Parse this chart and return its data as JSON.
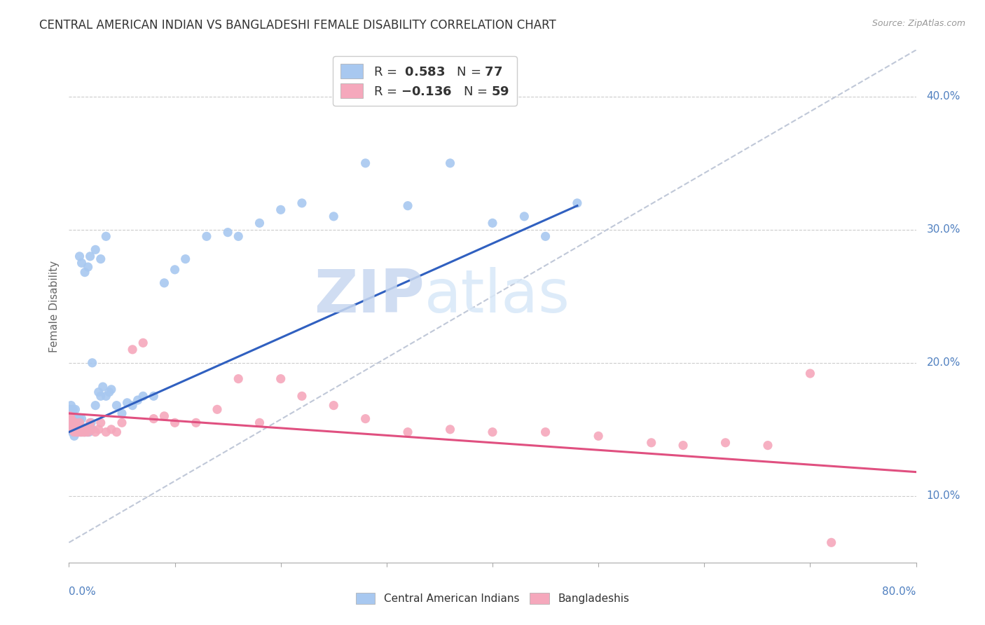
{
  "title": "CENTRAL AMERICAN INDIAN VS BANGLADESHI FEMALE DISABILITY CORRELATION CHART",
  "source": "Source: ZipAtlas.com",
  "ylabel": "Female Disability",
  "yticks_right": [
    0.1,
    0.2,
    0.3,
    0.4
  ],
  "ytick_labels_right": [
    "10.0%",
    "20.0%",
    "30.0%",
    "40.0%"
  ],
  "xlim": [
    0.0,
    0.8
  ],
  "ylim": [
    0.05,
    0.435
  ],
  "blue_color": "#A8C8F0",
  "pink_color": "#F5A8BC",
  "blue_line_color": "#3060C0",
  "pink_line_color": "#E05080",
  "gray_dash_color": "#C0C8D8",
  "watermark_zip": "ZIP",
  "watermark_atlas": "atlas",
  "blue_scatter_x": [
    0.001,
    0.001,
    0.002,
    0.002,
    0.002,
    0.003,
    0.003,
    0.003,
    0.004,
    0.004,
    0.004,
    0.005,
    0.005,
    0.005,
    0.006,
    0.006,
    0.006,
    0.007,
    0.007,
    0.008,
    0.008,
    0.009,
    0.009,
    0.01,
    0.01,
    0.011,
    0.012,
    0.012,
    0.013,
    0.014,
    0.015,
    0.016,
    0.017,
    0.018,
    0.019,
    0.02,
    0.021,
    0.022,
    0.025,
    0.028,
    0.03,
    0.032,
    0.035,
    0.038,
    0.04,
    0.045,
    0.05,
    0.055,
    0.06,
    0.065,
    0.07,
    0.08,
    0.09,
    0.1,
    0.11,
    0.13,
    0.15,
    0.16,
    0.18,
    0.2,
    0.22,
    0.25,
    0.28,
    0.32,
    0.36,
    0.4,
    0.43,
    0.45,
    0.48,
    0.01,
    0.012,
    0.015,
    0.018,
    0.02,
    0.025,
    0.03,
    0.035
  ],
  "blue_scatter_y": [
    0.155,
    0.165,
    0.15,
    0.158,
    0.168,
    0.148,
    0.155,
    0.162,
    0.15,
    0.158,
    0.165,
    0.145,
    0.152,
    0.16,
    0.15,
    0.158,
    0.165,
    0.148,
    0.155,
    0.15,
    0.158,
    0.148,
    0.155,
    0.15,
    0.158,
    0.148,
    0.152,
    0.158,
    0.148,
    0.15,
    0.148,
    0.15,
    0.148,
    0.15,
    0.148,
    0.152,
    0.155,
    0.2,
    0.168,
    0.178,
    0.175,
    0.182,
    0.175,
    0.178,
    0.18,
    0.168,
    0.162,
    0.17,
    0.168,
    0.172,
    0.175,
    0.175,
    0.26,
    0.27,
    0.278,
    0.295,
    0.298,
    0.295,
    0.305,
    0.315,
    0.32,
    0.31,
    0.35,
    0.318,
    0.35,
    0.305,
    0.31,
    0.295,
    0.32,
    0.28,
    0.275,
    0.268,
    0.272,
    0.28,
    0.285,
    0.278,
    0.295
  ],
  "pink_scatter_x": [
    0.001,
    0.001,
    0.002,
    0.002,
    0.003,
    0.003,
    0.004,
    0.004,
    0.005,
    0.005,
    0.006,
    0.006,
    0.007,
    0.007,
    0.008,
    0.008,
    0.009,
    0.01,
    0.01,
    0.011,
    0.012,
    0.013,
    0.014,
    0.015,
    0.016,
    0.018,
    0.02,
    0.022,
    0.025,
    0.028,
    0.03,
    0.035,
    0.04,
    0.045,
    0.05,
    0.06,
    0.07,
    0.08,
    0.09,
    0.1,
    0.12,
    0.14,
    0.16,
    0.18,
    0.2,
    0.22,
    0.25,
    0.28,
    0.32,
    0.36,
    0.4,
    0.45,
    0.5,
    0.55,
    0.58,
    0.62,
    0.66,
    0.7,
    0.72
  ],
  "pink_scatter_y": [
    0.155,
    0.16,
    0.152,
    0.158,
    0.15,
    0.156,
    0.15,
    0.155,
    0.148,
    0.155,
    0.15,
    0.155,
    0.148,
    0.153,
    0.148,
    0.153,
    0.148,
    0.15,
    0.155,
    0.148,
    0.148,
    0.15,
    0.148,
    0.148,
    0.15,
    0.148,
    0.155,
    0.15,
    0.148,
    0.15,
    0.155,
    0.148,
    0.15,
    0.148,
    0.155,
    0.21,
    0.215,
    0.158,
    0.16,
    0.155,
    0.155,
    0.165,
    0.188,
    0.155,
    0.188,
    0.175,
    0.168,
    0.158,
    0.148,
    0.15,
    0.148,
    0.148,
    0.145,
    0.14,
    0.138,
    0.14,
    0.138,
    0.192,
    0.065
  ],
  "blue_line_x": [
    0.0,
    0.48
  ],
  "blue_line_y": [
    0.148,
    0.318
  ],
  "pink_line_x": [
    0.0,
    0.8
  ],
  "pink_line_y": [
    0.162,
    0.118
  ],
  "gray_line_x": [
    0.0,
    0.8
  ],
  "gray_line_y": [
    0.065,
    0.435
  ]
}
